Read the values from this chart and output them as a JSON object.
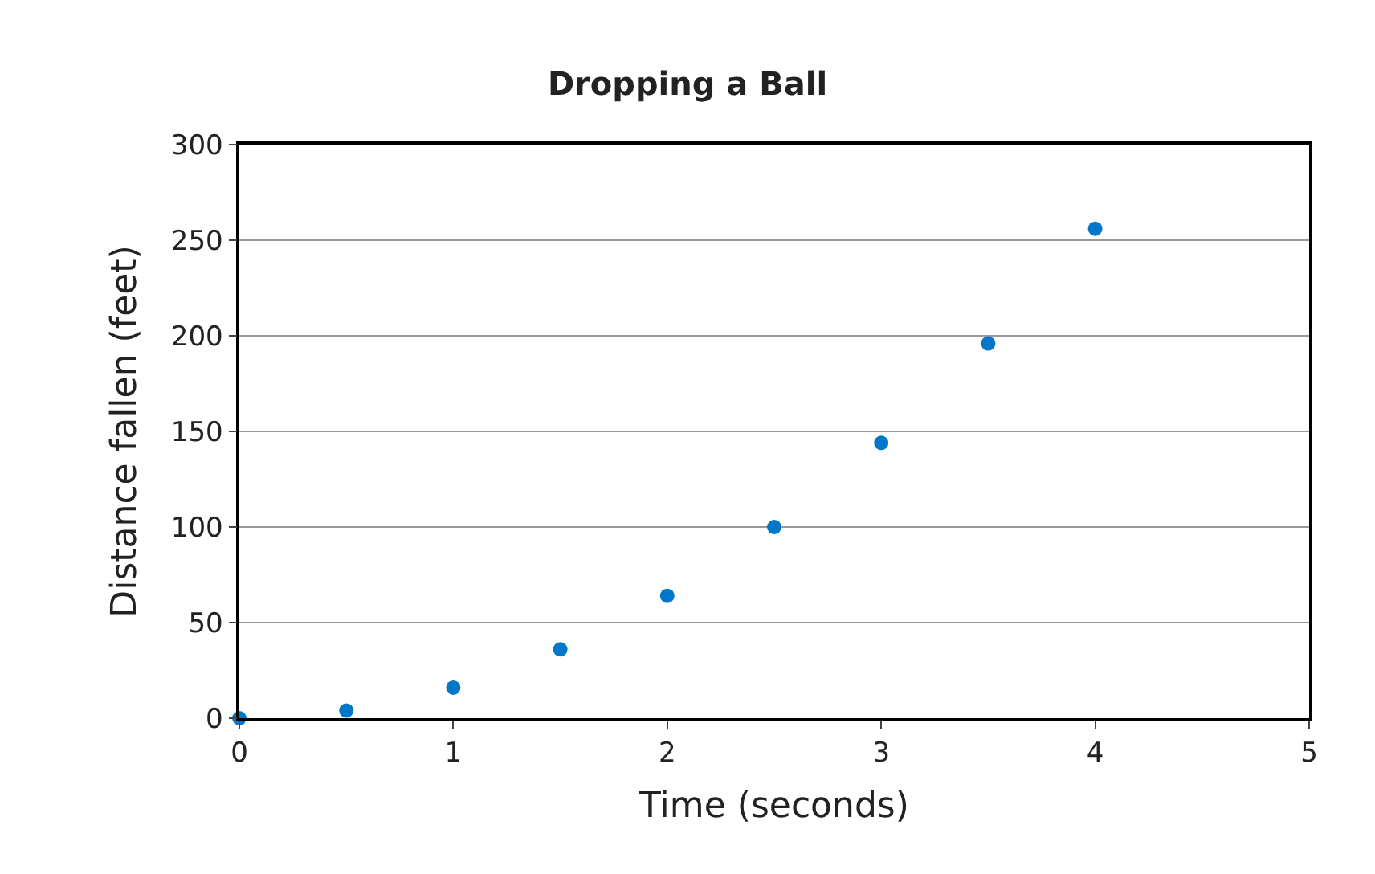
{
  "chart_data": {
    "type": "scatter",
    "title": "Dropping a Ball",
    "xlabel": "Time (seconds)",
    "ylabel": "Distance fallen (feet)",
    "x": [
      0,
      0.5,
      1,
      1.5,
      2,
      2.5,
      3,
      3.5,
      4
    ],
    "series": [
      {
        "color": "#0077c8",
        "values": [
          0,
          4,
          16,
          36,
          64,
          100,
          144,
          196,
          256
        ]
      }
    ],
    "xlim": [
      0,
      5
    ],
    "xticks": [
      0,
      1,
      2,
      3,
      4,
      5
    ],
    "ylim": [
      0,
      300
    ],
    "yticks": [
      0,
      50,
      100,
      150,
      200,
      250,
      300
    ],
    "grid": "y",
    "marker": "circle",
    "legend": false
  }
}
